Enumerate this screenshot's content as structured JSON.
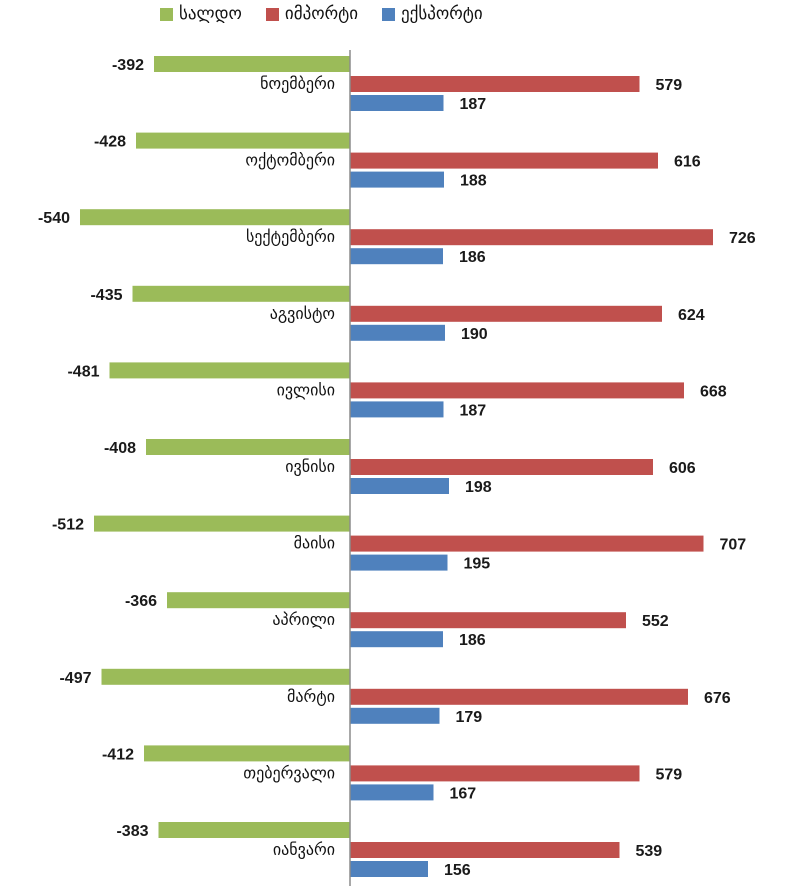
{
  "chart_data": {
    "type": "bar",
    "orientation": "horizontal",
    "categories": [
      "ნოემბერი",
      "ოქტომბერი",
      "სექტემბერი",
      "აგვისტო",
      "ივლისი",
      "ივნისი",
      "მაისი",
      "აპრილი",
      "მარტი",
      "თებერვალი",
      "იანვარი"
    ],
    "series": [
      {
        "name": "სალდო",
        "color": "#9bbb59",
        "values": [
          -392,
          -428,
          -540,
          -435,
          -481,
          -408,
          -512,
          -366,
          -497,
          -412,
          -383
        ]
      },
      {
        "name": "იმპორტი",
        "color": "#c0504d",
        "values": [
          579,
          616,
          726,
          624,
          668,
          606,
          707,
          552,
          676,
          579,
          539
        ]
      },
      {
        "name": "ექსპორტი",
        "color": "#4f81bd",
        "values": [
          187,
          188,
          186,
          190,
          187,
          198,
          195,
          186,
          179,
          167,
          156
        ]
      }
    ],
    "legend_position": "top",
    "grid": false
  }
}
